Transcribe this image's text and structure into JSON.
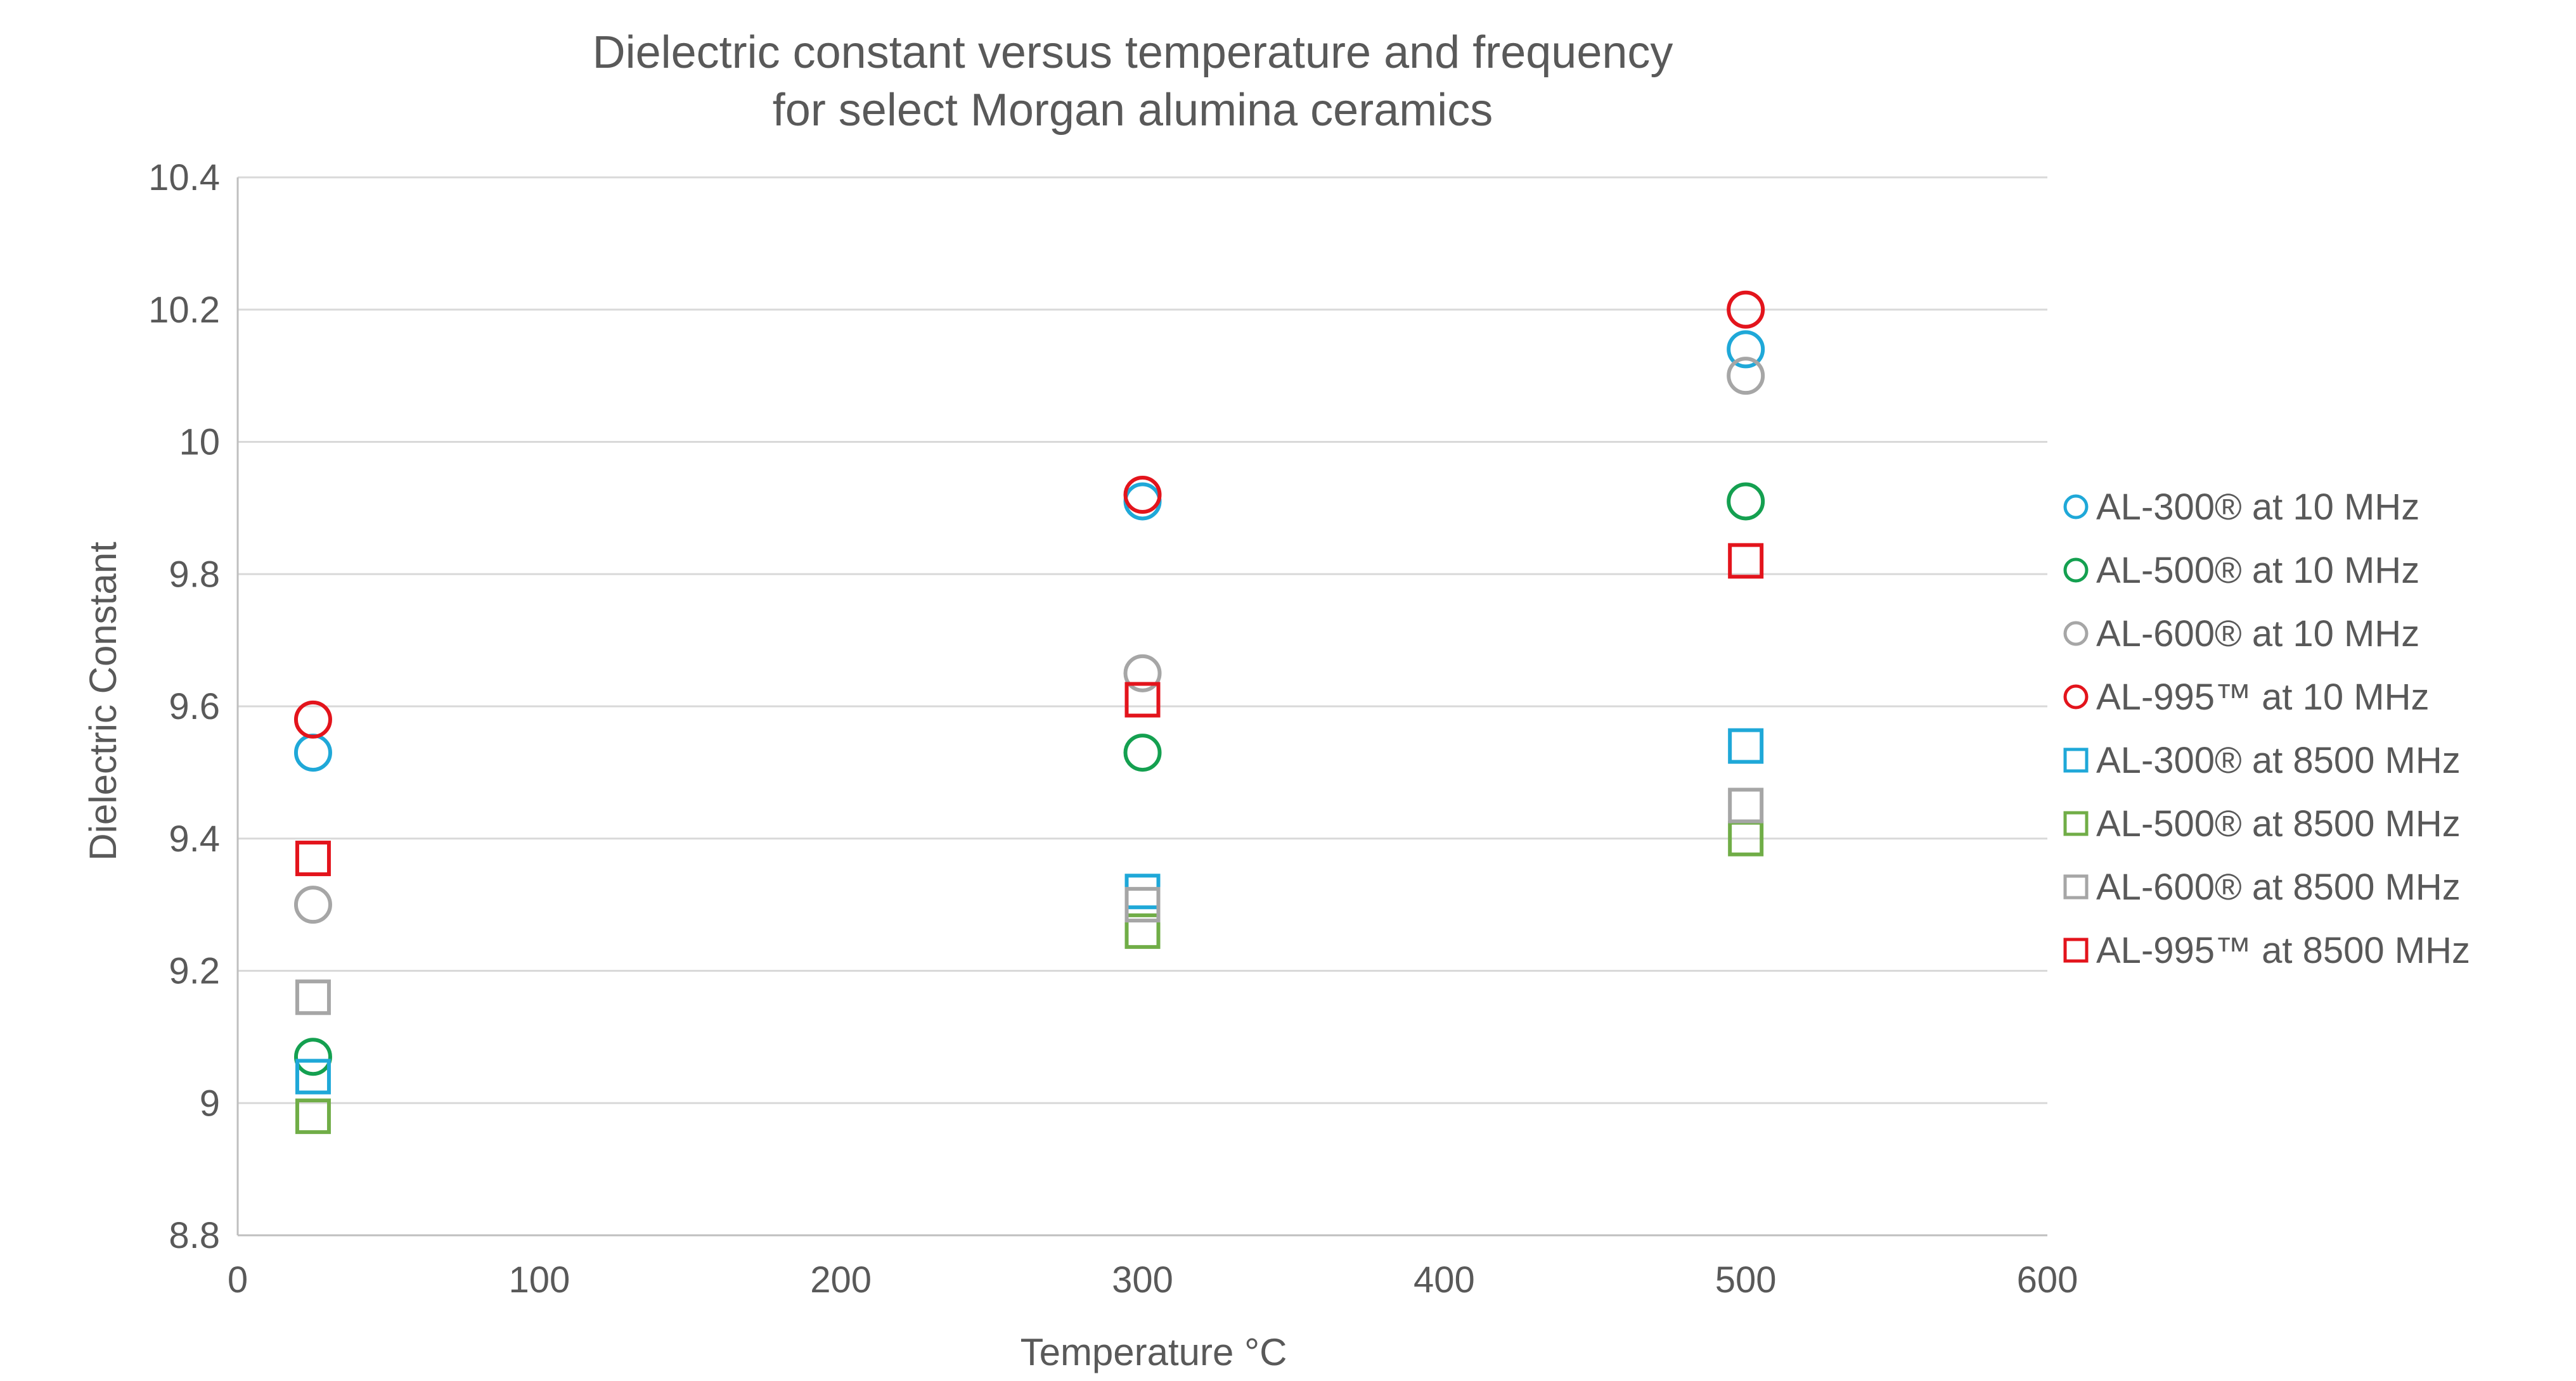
{
  "chart_data": {
    "type": "scatter",
    "title": [
      "Dielectric constant versus temperature and frequency",
      "for select Morgan alumina ceramics"
    ],
    "xlabel": "Temperature °C",
    "ylabel": "Dielectric Constant",
    "xlim": [
      0,
      600
    ],
    "ylim": [
      8.8,
      10.4
    ],
    "xticks": [
      "0",
      "100",
      "200",
      "300",
      "400",
      "500",
      "600"
    ],
    "yticks": [
      "8.8",
      "9",
      "9.2",
      "9.4",
      "9.6",
      "9.8",
      "10",
      "10.2",
      "10.4"
    ],
    "grid": true,
    "legend_position": "right",
    "series": [
      {
        "name": "AL-300® at 10 MHz",
        "marker": "circle",
        "color": "#1fa8d8",
        "x": [
          25,
          300,
          500
        ],
        "y": [
          9.53,
          9.91,
          10.14
        ]
      },
      {
        "name": "AL-500® at 10 MHz",
        "marker": "circle",
        "color": "#14a050",
        "x": [
          25,
          300,
          500
        ],
        "y": [
          9.07,
          9.53,
          9.91
        ]
      },
      {
        "name": "AL-600® at 10 MHz",
        "marker": "circle",
        "color": "#a6a6a6",
        "x": [
          25,
          300,
          500
        ],
        "y": [
          9.3,
          9.65,
          10.1
        ]
      },
      {
        "name": "AL-995™ at 10 MHz",
        "marker": "circle",
        "color": "#e3141c",
        "x": [
          25,
          300,
          500
        ],
        "y": [
          9.58,
          9.92,
          10.2
        ]
      },
      {
        "name": "AL-300® at 8500 MHz",
        "marker": "square",
        "color": "#1fa8d8",
        "x": [
          25,
          300,
          500
        ],
        "y": [
          9.04,
          9.32,
          9.54
        ]
      },
      {
        "name": "AL-500® at 8500 MHz",
        "marker": "square",
        "color": "#70ad47",
        "x": [
          25,
          300,
          500
        ],
        "y": [
          8.98,
          9.26,
          9.4
        ]
      },
      {
        "name": "AL-600® at 8500 MHz",
        "marker": "square",
        "color": "#a6a6a6",
        "x": [
          25,
          300,
          500
        ],
        "y": [
          9.16,
          9.3,
          9.45
        ]
      },
      {
        "name": "AL-995™ at 8500 MHz",
        "marker": "square",
        "color": "#e3141c",
        "x": [
          25,
          300,
          500
        ],
        "y": [
          9.37,
          9.61,
          9.82
        ]
      }
    ]
  }
}
